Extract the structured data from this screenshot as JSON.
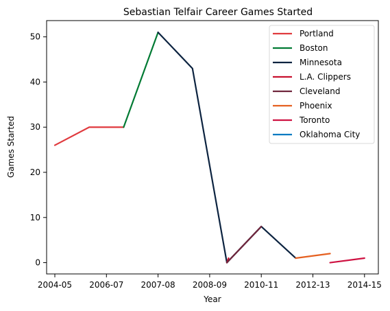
{
  "chart_data": {
    "type": "line",
    "title": "Sebastian Telfair Career Games Started",
    "xlabel": "Year",
    "ylabel": "Games Started",
    "x_ticks": [
      "2004-05",
      "2006-07",
      "2007-08",
      "2008-09",
      "2010-11",
      "2012-13",
      "2014-15"
    ],
    "y_ticks": [
      0,
      10,
      20,
      30,
      40,
      50
    ],
    "ylim": [
      -2.5,
      53.6
    ],
    "legend_position": "top-right",
    "grid": false,
    "series": [
      {
        "name": "Portland",
        "color": "#E03A3E",
        "points": [
          [
            0,
            26
          ],
          [
            1,
            30
          ],
          [
            2,
            30
          ]
        ]
      },
      {
        "name": "Boston",
        "color": "#007A33",
        "points": [
          [
            2,
            30
          ],
          [
            3,
            51
          ]
        ]
      },
      {
        "name": "Minnesota",
        "color": "#0C2340",
        "points": [
          [
            3,
            51
          ],
          [
            4,
            43
          ],
          [
            5,
            0
          ],
          [
            6,
            8
          ],
          [
            7,
            1
          ]
        ]
      },
      {
        "name": "L.A. Clippers",
        "color": "#C8102E",
        "points": [
          [
            5,
            0
          ],
          [
            5.05,
            1
          ]
        ]
      },
      {
        "name": "Cleveland",
        "color": "#6F263D",
        "points": [
          [
            5,
            0
          ],
          [
            6,
            8
          ]
        ]
      },
      {
        "name": "Phoenix",
        "color": "#E56020",
        "points": [
          [
            7,
            1
          ],
          [
            8,
            2
          ]
        ]
      },
      {
        "name": "Toronto",
        "color": "#CE1141",
        "points": [
          [
            8,
            0
          ],
          [
            9,
            1
          ]
        ]
      },
      {
        "name": "Oklahoma City",
        "color": "#007AC1",
        "points": []
      }
    ]
  }
}
